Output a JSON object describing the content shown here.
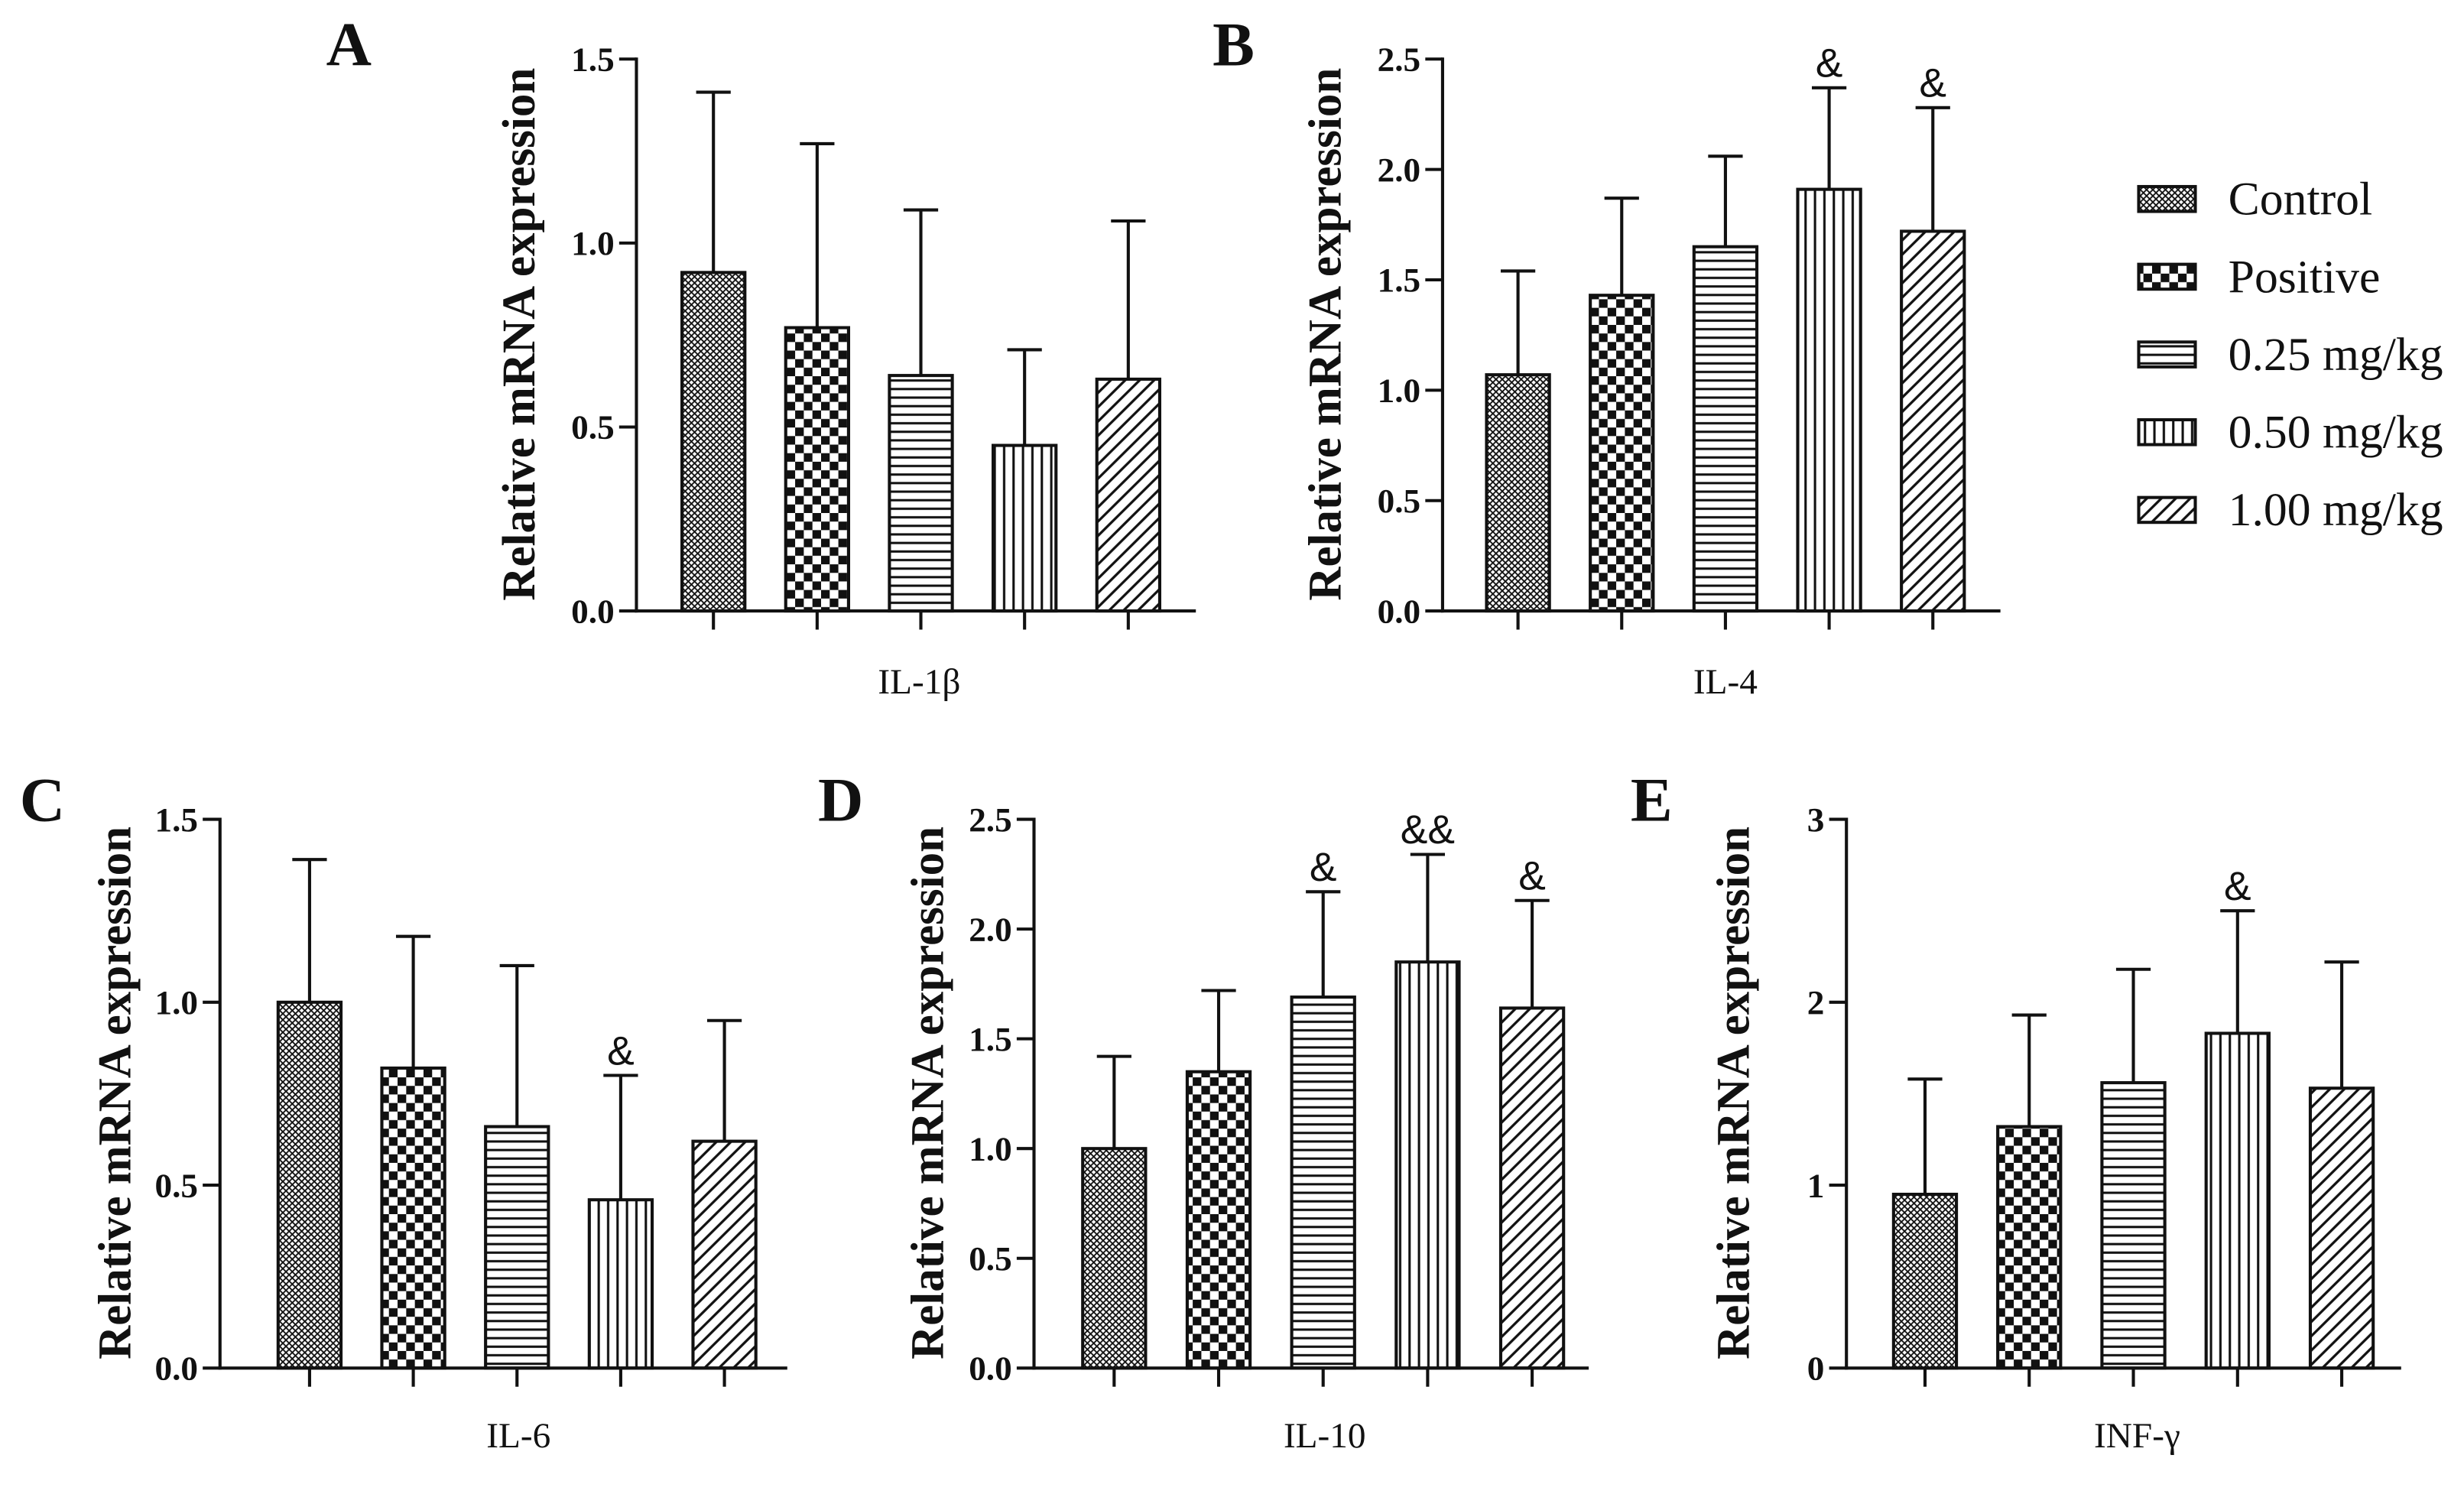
{
  "style": {
    "ink": "#111111",
    "background": "#ffffff"
  },
  "legend": {
    "entries": [
      "Control",
      "Positive",
      "0.25 mg/kg",
      "0.50 mg/kg",
      "1.00 mg/kg"
    ]
  },
  "chart_data": [
    {
      "panel": "A",
      "type": "bar",
      "xlabel": "IL-1β",
      "ylabel": "Relative mRNA expression",
      "ylim": [
        0,
        1.5
      ],
      "yticks": [
        "0.0",
        "0.5",
        "1.0",
        "1.5"
      ],
      "grid": false,
      "values": [
        0.92,
        0.77,
        0.64,
        0.45,
        0.63
      ],
      "errors": [
        0.49,
        0.5,
        0.45,
        0.26,
        0.43
      ],
      "annotations": [
        "",
        "",
        "",
        "",
        ""
      ]
    },
    {
      "panel": "B",
      "type": "bar",
      "xlabel": "IL-4",
      "ylabel": "Relative mRNA expression",
      "ylim": [
        0,
        2.5
      ],
      "yticks": [
        "0.0",
        "0.5",
        "1.0",
        "1.5",
        "2.0",
        "2.5"
      ],
      "grid": false,
      "values": [
        1.07,
        1.43,
        1.65,
        1.91,
        1.72
      ],
      "errors": [
        0.47,
        0.44,
        0.41,
        0.46,
        0.56
      ],
      "annotations": [
        "",
        "",
        "",
        "&",
        "&"
      ]
    },
    {
      "panel": "C",
      "type": "bar",
      "xlabel": "IL-6",
      "ylabel": "Relative mRNA expression",
      "ylim": [
        0,
        1.5
      ],
      "yticks": [
        "0.0",
        "0.5",
        "1.0",
        "1.5"
      ],
      "grid": false,
      "values": [
        1.0,
        0.82,
        0.66,
        0.46,
        0.62
      ],
      "errors": [
        0.39,
        0.36,
        0.44,
        0.34,
        0.33
      ],
      "annotations": [
        "",
        "",
        "",
        "&",
        ""
      ]
    },
    {
      "panel": "D",
      "type": "bar",
      "xlabel": "IL-10",
      "ylabel": "Relative mRNA expression",
      "ylim": [
        0,
        2.5
      ],
      "yticks": [
        "0.0",
        "0.5",
        "1.0",
        "1.5",
        "2.0",
        "2.5"
      ],
      "grid": false,
      "values": [
        1.0,
        1.35,
        1.69,
        1.85,
        1.64
      ],
      "errors": [
        0.42,
        0.37,
        0.48,
        0.49,
        0.49
      ],
      "annotations": [
        "",
        "",
        "&",
        "&&",
        "&"
      ]
    },
    {
      "panel": "E",
      "type": "bar",
      "xlabel": "INF-γ",
      "ylabel": "Relative mRNA expression",
      "ylim": [
        0,
        3
      ],
      "yticks": [
        "0",
        "1",
        "2",
        "3"
      ],
      "grid": false,
      "values": [
        0.95,
        1.32,
        1.56,
        1.83,
        1.53
      ],
      "errors": [
        0.63,
        0.61,
        0.62,
        0.67,
        0.69
      ],
      "annotations": [
        "",
        "",
        "",
        "&",
        ""
      ]
    }
  ]
}
